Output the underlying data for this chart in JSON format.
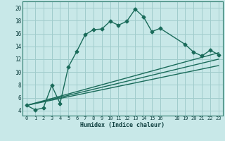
{
  "title": "",
  "xlabel": "Humidex (Indice chaleur)",
  "bg_color": "#c8e8e8",
  "grid_color": "#a0cccc",
  "line_color": "#1a6b5a",
  "marker": "D",
  "marker_size": 2.5,
  "line_width": 1.0,
  "xlim": [
    -0.5,
    23.5
  ],
  "ylim": [
    3.2,
    21.0
  ],
  "xticks": [
    0,
    1,
    2,
    3,
    4,
    5,
    6,
    7,
    8,
    9,
    10,
    11,
    12,
    13,
    14,
    15,
    16,
    18,
    19,
    20,
    21,
    22,
    23
  ],
  "yticks": [
    4,
    6,
    8,
    10,
    12,
    14,
    16,
    18,
    20
  ],
  "curve1_x": [
    0,
    1,
    2,
    3,
    4,
    5,
    6,
    7,
    8,
    9,
    10,
    11,
    12,
    13,
    14,
    15,
    16,
    19,
    20,
    21,
    22,
    23
  ],
  "curve1_y": [
    4.8,
    4.1,
    4.4,
    7.9,
    5.1,
    10.8,
    13.2,
    15.8,
    16.6,
    16.7,
    17.9,
    17.3,
    17.9,
    19.8,
    18.6,
    16.3,
    16.8,
    14.3,
    13.1,
    12.5,
    13.4,
    12.7
  ],
  "curve2_x": [
    0,
    23
  ],
  "curve2_y": [
    4.8,
    13.0
  ],
  "curve3_x": [
    0,
    23
  ],
  "curve3_y": [
    4.8,
    12.0
  ],
  "curve4_x": [
    0,
    23
  ],
  "curve4_y": [
    4.8,
    11.0
  ]
}
